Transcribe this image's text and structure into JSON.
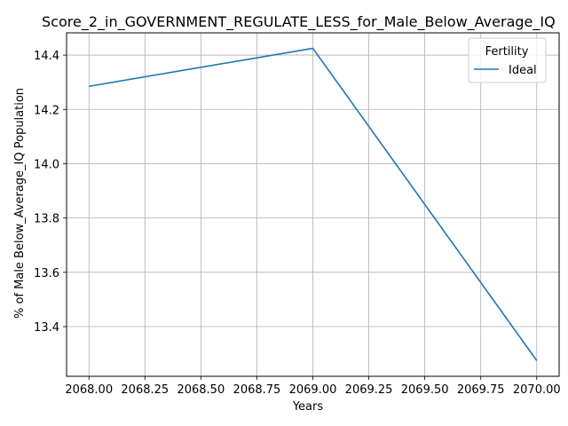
{
  "chart_data": {
    "type": "line",
    "title": "Score_2_in_GOVERNMENT_REGULATE_LESS_for_Male_Below_Average_IQ",
    "xlabel": "Years",
    "ylabel": "% of Male Below_Average_IQ Population",
    "x": [
      2068,
      2069,
      2070
    ],
    "series": [
      {
        "name": "Ideal",
        "color": "#1f77b4",
        "values": [
          14.285,
          14.425,
          13.275
        ]
      }
    ],
    "xlim": [
      2067.9,
      2070.1
    ],
    "ylim": [
      13.217,
      14.482
    ],
    "xticks": [
      2068.0,
      2068.25,
      2068.5,
      2068.75,
      2069.0,
      2069.25,
      2069.5,
      2069.75,
      2070.0
    ],
    "xtick_labels": [
      "2068.00",
      "2068.25",
      "2068.50",
      "2068.75",
      "2069.00",
      "2069.25",
      "2069.50",
      "2069.75",
      "2070.00"
    ],
    "yticks": [
      13.4,
      13.6,
      13.8,
      14.0,
      14.2,
      14.4
    ],
    "ytick_labels": [
      "13.4",
      "13.6",
      "13.8",
      "14.0",
      "14.2",
      "14.4"
    ],
    "grid": true,
    "legend": {
      "title": "Fertility",
      "position": "top-right"
    }
  }
}
